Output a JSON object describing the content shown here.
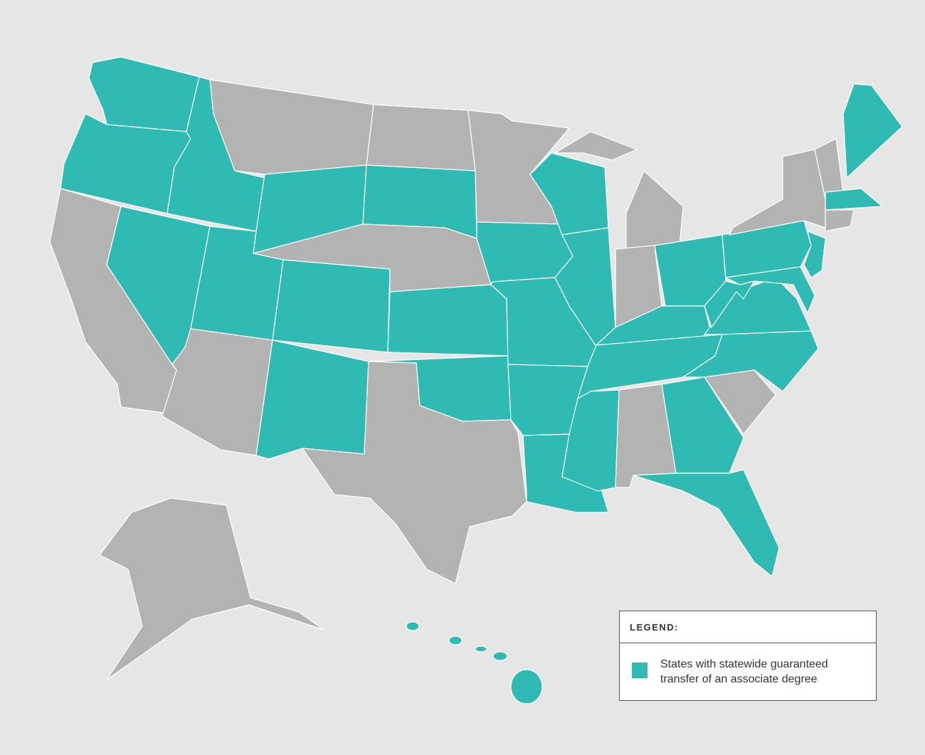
{
  "legend": {
    "title": "LEGEND:",
    "items": [
      {
        "label": "States with statewide guaranteed transfer of an associate degree",
        "color": "#2fbbb3"
      }
    ]
  }
}
